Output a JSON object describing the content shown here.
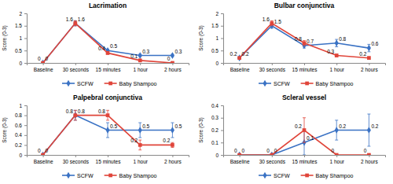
{
  "chart_data": [
    {
      "type": "line",
      "title": "Lacrimation",
      "y_label": "Score (0-3)",
      "categories": [
        "Baseline",
        "30 seconds",
        "15 minutes",
        "1 hour",
        "2 hours"
      ],
      "series": [
        {
          "name": "SCFW",
          "color": "#3a72c4",
          "marker": "diamond",
          "values": [
            0,
            1.6,
            0.5,
            0.3,
            0.3
          ],
          "errors": [
            0,
            0.1,
            0.05,
            0.05,
            0.05
          ]
        },
        {
          "name": "Baby Shampoo",
          "color": "#e0453a",
          "marker": "square",
          "values": [
            0,
            1.6,
            0.4,
            0.1,
            0
          ],
          "errors": [
            0,
            0.1,
            0.05,
            0.05,
            0
          ]
        }
      ],
      "ylim": [
        0,
        2
      ],
      "yticks": [
        0,
        0.5,
        1,
        1.5,
        2
      ],
      "grid": false,
      "data_labels": true,
      "legend": "bottom"
    },
    {
      "type": "line",
      "title": "Bulbar conjunctiva",
      "y_label": "Score (0-3)",
      "categories": [
        "Baseline",
        "30 seconds",
        "15 minutes",
        "1 hour",
        "2 hours"
      ],
      "series": [
        {
          "name": "SCFW",
          "color": "#3a72c4",
          "marker": "diamond",
          "values": [
            0.2,
            1.5,
            0.7,
            0.8,
            0.6
          ],
          "errors": [
            0,
            0.1,
            0.1,
            0.15,
            0.15
          ]
        },
        {
          "name": "Baby Shampoo",
          "color": "#e0453a",
          "marker": "square",
          "values": [
            0.2,
            1.6,
            0.8,
            0.3,
            0.2
          ],
          "errors": [
            0,
            0.1,
            0.1,
            0.05,
            0.05
          ]
        }
      ],
      "ylim": [
        0,
        2
      ],
      "yticks": [
        0,
        0.5,
        1,
        1.5,
        2
      ],
      "grid": false,
      "data_labels": true,
      "legend": "bottom"
    },
    {
      "type": "line",
      "title": "Palpebral conjunctiva",
      "y_label": "Score (0-3)",
      "categories": [
        "Baseline",
        "30 seconds",
        "15 minutes",
        "1 hour",
        "2 hours"
      ],
      "series": [
        {
          "name": "SCFW",
          "color": "#3a72c4",
          "marker": "diamond",
          "values": [
            0,
            0.8,
            0.5,
            0.5,
            0.5
          ],
          "errors": [
            0,
            0.1,
            0.15,
            0.15,
            0.15
          ]
        },
        {
          "name": "Baby Shampoo",
          "color": "#e0453a",
          "marker": "square",
          "values": [
            0,
            0.8,
            0.8,
            0.2,
            0.2
          ],
          "errors": [
            0,
            0.1,
            0.1,
            0.1,
            0.05
          ]
        }
      ],
      "ylim": [
        0,
        1
      ],
      "yticks": [
        0,
        0.2,
        0.4,
        0.6,
        0.8,
        1
      ],
      "grid": false,
      "data_labels": true,
      "legend": "bottom"
    },
    {
      "type": "line",
      "title": "Scleral vessel",
      "y_label": "Score (0-3)",
      "categories": [
        "Baseline",
        "30 seconds",
        "15 minutes",
        "1 hour",
        "2 hours"
      ],
      "series": [
        {
          "name": "SCFW",
          "color": "#3a72c4",
          "marker": "diamond",
          "values": [
            0,
            0,
            0.1,
            0.2,
            0.2
          ],
          "errors": [
            0,
            0,
            0.1,
            0.08,
            0.13
          ]
        },
        {
          "name": "Baby Shampoo",
          "color": "#e0453a",
          "marker": "square",
          "values": [
            0,
            0,
            0.2,
            0,
            0
          ],
          "errors": [
            0,
            0,
            0.1,
            0,
            0
          ]
        }
      ],
      "ylim": [
        0,
        0.4
      ],
      "yticks": [
        0,
        0.1,
        0.2,
        0.3,
        0.4
      ],
      "grid": false,
      "data_labels": true,
      "legend": "bottom"
    }
  ]
}
